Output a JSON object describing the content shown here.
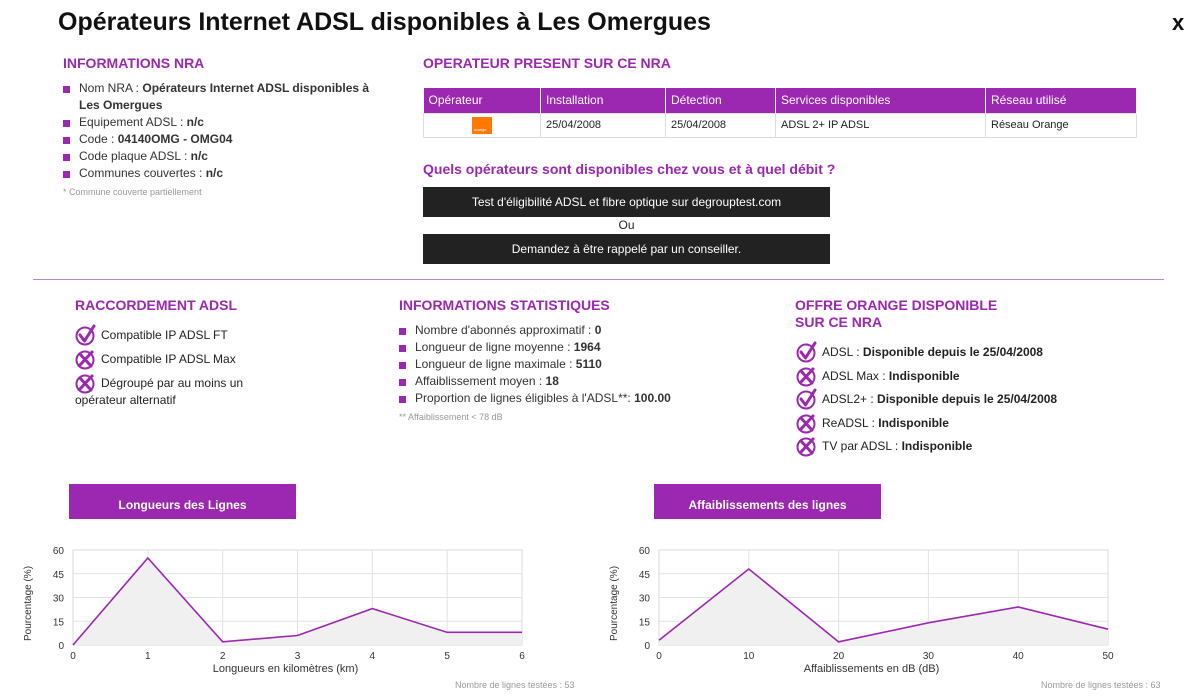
{
  "page": {
    "title": "Opérateurs Internet ADSL disponibles à Les Omergues",
    "close_label": "x"
  },
  "nra_info": {
    "title": "INFORMATIONS NRA",
    "items": [
      {
        "label": "Nom NRA : ",
        "value": "Opérateurs Internet ADSL disponibles à Les Omergues"
      },
      {
        "label": "Equipement ADSL : ",
        "value": "n/c"
      },
      {
        "label": "Code : ",
        "value": "04140OMG - OMG04"
      },
      {
        "label": "Code plaque ADSL : ",
        "value": "n/c"
      },
      {
        "label": "Communes couvertes : ",
        "value": "n/c"
      }
    ],
    "footnote": "* Commune couverte partiellement"
  },
  "operator_table": {
    "title": "OPERATEUR PRESENT SUR CE NRA",
    "headers": [
      "Opérateur",
      "Installation",
      "Détection",
      "Services disponibles",
      "Réseau utilisé"
    ],
    "rows": [
      {
        "operator_logo": "orange-logo",
        "installation": "25/04/2008",
        "detection": "25/04/2008",
        "services": "ADSL 2+ IP ADSL",
        "network": "Réseau Orange"
      }
    ]
  },
  "cta": {
    "question": "Quels opérateurs sont disponibles chez vous et à quel débit ?",
    "test_button": "Test d'éligibilité ADSL et fibre optique sur degrouptest.com",
    "or_text": "Ou",
    "callback_button": "Demandez à être rappelé par un conseiller."
  },
  "raccordement": {
    "title": "RACCORDEMENT ADSL",
    "items": [
      {
        "icon": "check-icon",
        "label": "Compatible IP ADSL FT"
      },
      {
        "icon": "cross-icon",
        "label": "Compatible IP ADSL Max"
      },
      {
        "icon": "cross-icon",
        "label": "Dégroupé par au moins un opérateur alternatif"
      }
    ]
  },
  "stats": {
    "title": "INFORMATIONS STATISTIQUES",
    "items": [
      {
        "label": "Nombre d'abonnés approximatif : ",
        "value": "0"
      },
      {
        "label": "Longueur de ligne moyenne : ",
        "value": "1964"
      },
      {
        "label": "Longueur de ligne maximale : ",
        "value": "5110"
      },
      {
        "label": "Affaiblissement moyen : ",
        "value": "18"
      },
      {
        "label": "Proportion de lignes éligibles à l'ADSL**: ",
        "value": "100.00"
      }
    ],
    "footnote": "** Affaiblissement < 78 dB"
  },
  "offer": {
    "title_line1": "OFFRE ORANGE DISPONIBLE",
    "title_line2": "SUR CE NRA",
    "items": [
      {
        "icon": "check-icon",
        "label": "ADSL : ",
        "value": "Disponible depuis le 25/04/2008"
      },
      {
        "icon": "cross-icon",
        "label": "ADSL Max : ",
        "value": "Indisponible"
      },
      {
        "icon": "check-icon",
        "label": "ADSL2+ : ",
        "value": "Disponible depuis le 25/04/2008"
      },
      {
        "icon": "cross-icon",
        "label": "ReADSL : ",
        "value": "Indisponible"
      },
      {
        "icon": "cross-icon",
        "label": "TV par ADSL : ",
        "value": "Indisponible"
      }
    ]
  },
  "colors": {
    "accent": "#9c27b0",
    "dark_button": "#222222",
    "orange": "#ff7900"
  },
  "chart_data": [
    {
      "type": "area",
      "title": "Longueurs des Lignes",
      "xlabel": "Longueurs en kilomètres (km)",
      "ylabel": "Pourcentage (%)",
      "x": [
        0,
        1,
        2,
        3,
        4,
        5,
        6
      ],
      "values": [
        0,
        55,
        2,
        6,
        23,
        8,
        8
      ],
      "xlim": [
        0,
        6
      ],
      "ylim": [
        0,
        60
      ],
      "yticks": [
        0,
        15,
        30,
        45,
        60
      ],
      "grid": true,
      "note": "Nombre de lignes testées : 53"
    },
    {
      "type": "area",
      "title": "Affaiblissements des lignes",
      "xlabel": "Affaiblissements en dB (dB)",
      "ylabel": "Pourcentage (%)",
      "x": [
        0,
        10,
        20,
        30,
        40,
        50
      ],
      "values": [
        3,
        48,
        2,
        14,
        24,
        10
      ],
      "xlim": [
        0,
        50
      ],
      "ylim": [
        0,
        60
      ],
      "yticks": [
        0,
        15,
        30,
        45,
        60
      ],
      "grid": true,
      "note": "Nombre de lignes testées : 63"
    }
  ]
}
